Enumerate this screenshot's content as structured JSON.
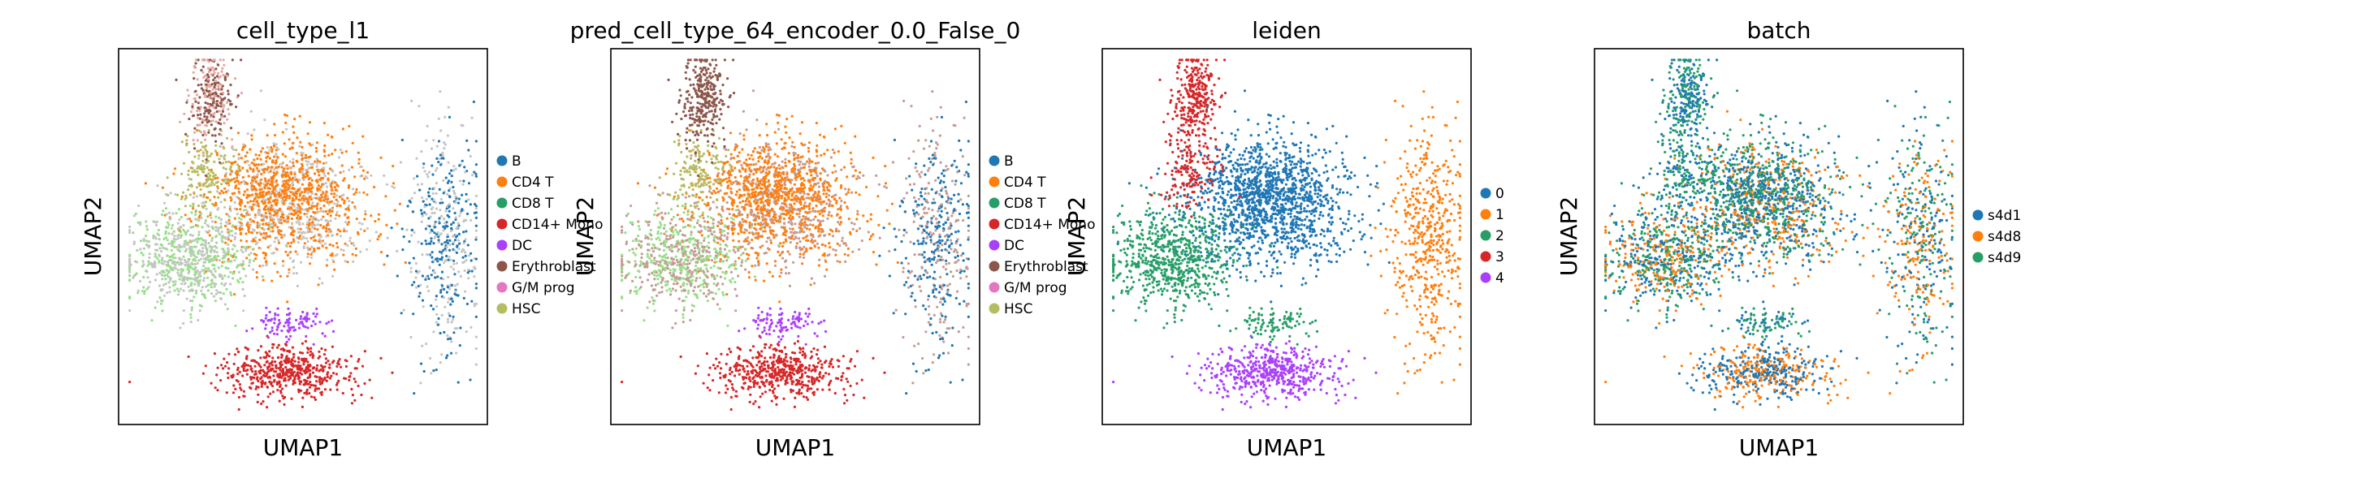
{
  "chart_data": [
    {
      "type": "scatter",
      "title": "cell_type_l1",
      "xlabel": "UMAP1",
      "ylabel": "UMAP2",
      "legend_position": "right",
      "legend": [
        {
          "label": "B",
          "color": "#1f77b4"
        },
        {
          "label": "CD4 T",
          "color": "#ff7f0e"
        },
        {
          "label": "CD8 T",
          "color": "#279e68"
        },
        {
          "label": "CD14+ Mono",
          "color": "#d62728"
        },
        {
          "label": "DC",
          "color": "#aa40fc"
        },
        {
          "label": "Erythroblast",
          "color": "#8c564b"
        },
        {
          "label": "G/M prog",
          "color": "#e377c2"
        },
        {
          "label": "HSC",
          "color": "#b5bd61"
        }
      ]
    },
    {
      "type": "scatter",
      "title": "pred_cell_type_64_encoder_0.0_False_0",
      "xlabel": "UMAP1",
      "ylabel": "UMAP2",
      "legend_position": "right",
      "legend": [
        {
          "label": "B",
          "color": "#1f77b4"
        },
        {
          "label": "CD4 T",
          "color": "#ff7f0e"
        },
        {
          "label": "CD8 T",
          "color": "#279e68"
        },
        {
          "label": "CD14+ Mono",
          "color": "#d62728"
        },
        {
          "label": "DC",
          "color": "#aa40fc"
        },
        {
          "label": "Erythroblast",
          "color": "#8c564b"
        },
        {
          "label": "G/M prog",
          "color": "#e377c2"
        },
        {
          "label": "HSC",
          "color": "#b5bd61"
        }
      ]
    },
    {
      "type": "scatter",
      "title": "leiden",
      "xlabel": "UMAP1",
      "ylabel": "UMAP2",
      "legend_position": "right",
      "legend": [
        {
          "label": "0",
          "color": "#1f77b4"
        },
        {
          "label": "1",
          "color": "#ff7f0e"
        },
        {
          "label": "2",
          "color": "#279e68"
        },
        {
          "label": "3",
          "color": "#d62728"
        },
        {
          "label": "4",
          "color": "#aa40fc"
        }
      ]
    },
    {
      "type": "scatter",
      "title": "batch",
      "xlabel": "UMAP1",
      "ylabel": "UMAP2",
      "legend_position": "right",
      "legend": [
        {
          "label": "s4d1",
          "color": "#1f77b4"
        },
        {
          "label": "s4d8",
          "color": "#ff7f0e"
        },
        {
          "label": "s4d9",
          "color": "#279e68"
        }
      ]
    }
  ]
}
